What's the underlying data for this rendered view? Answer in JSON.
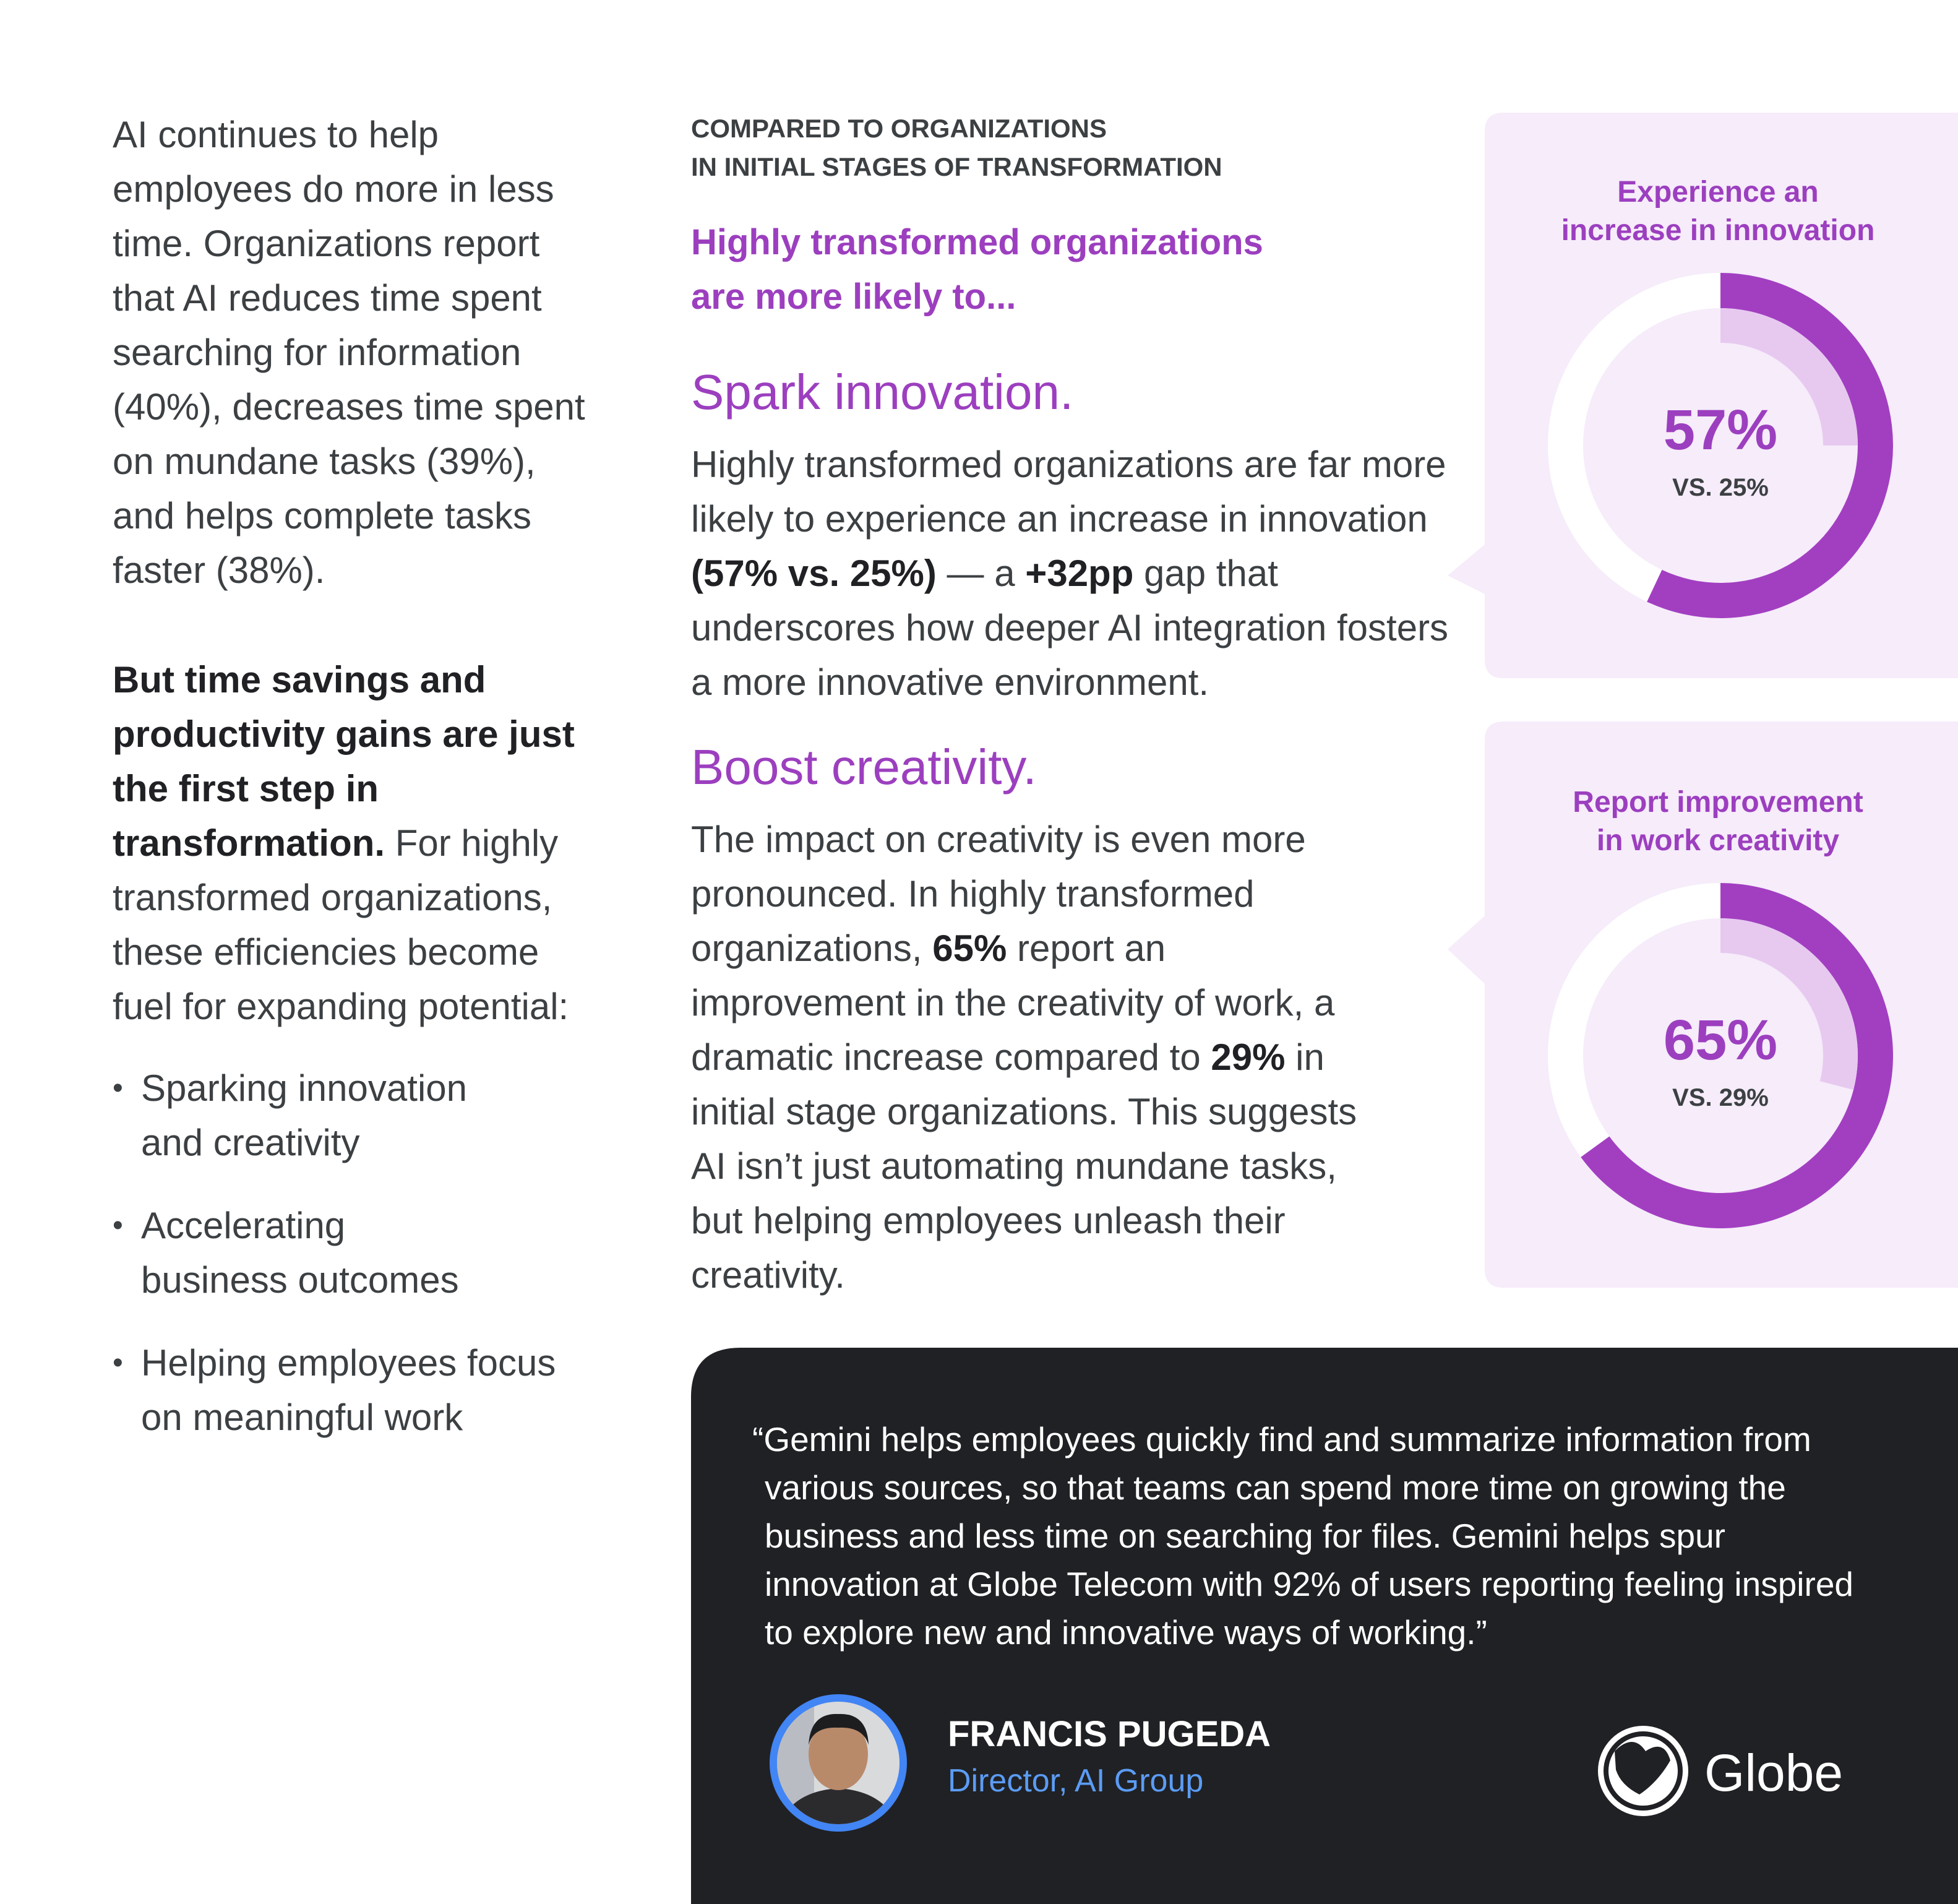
{
  "left": {
    "intro": "AI continues to help employees do more in less time. Organizations report that AI reduces time spent searching for information (40%), decreases time spent on mundane tasks (39%), and helps complete tasks faster (38%).",
    "emphasis": "But time savings and productivity gains are just the first step in transformation.",
    "continuation": " For highly transformed organizations, these efficiencies become fuel for expanding potential:",
    "bullets": [
      [
        "Sparking innovation",
        "and creativity"
      ],
      [
        "Accelerating",
        "business outcomes"
      ],
      [
        "Helping employees focus",
        "on meaningful work"
      ]
    ]
  },
  "middle": {
    "eyebrow": [
      "COMPARED TO ORGANIZATIONS",
      "IN INITIAL STAGES OF TRANSFORMATION"
    ],
    "lead": [
      "Highly transformed organizations",
      "are more likely to..."
    ],
    "sections": [
      {
        "heading": "Spark innovation.",
        "body": [
          "Highly transformed organizations are far more likely to experience an increase in innovation ",
          "(57% vs. 25%)",
          " — a ",
          "+32pp",
          " gap that underscores how deeper AI integration fosters a more innovative environment."
        ]
      },
      {
        "heading": "Boost creativity.",
        "body": [
          "The impact on creativity is even more pronounced. In highly transformed organizations, ",
          "65%",
          " report an improvement in the creativity of work, a dramatic increase compared to ",
          "29%",
          " in initial stage organizations. This suggests AI isn’t just automating mundane tasks, but helping employees unleash their creativity."
        ]
      }
    ]
  },
  "donuts": [
    {
      "title": [
        "Experience an",
        "increase in innovation"
      ],
      "value": 57,
      "value_label": "57%",
      "baseline": 25,
      "baseline_label": "VS. 25%"
    },
    {
      "title": [
        "Report improvement",
        "in work creativity"
      ],
      "value": 65,
      "value_label": "65%",
      "baseline": 29,
      "baseline_label": "VS. 29%"
    }
  ],
  "quote": {
    "text": "“Gemini helps employees quickly find and summarize information from various sources, so that teams can spend more time on growing the business and less time on searching for files. Gemini helps spur innovation at Globe Telecom with 92% of users reporting feeling inspired to explore new and innovative ways of working.”",
    "name": "FRANCIS PUGEDA",
    "role": "Director, AI Group",
    "logo": "Globe"
  }
}
